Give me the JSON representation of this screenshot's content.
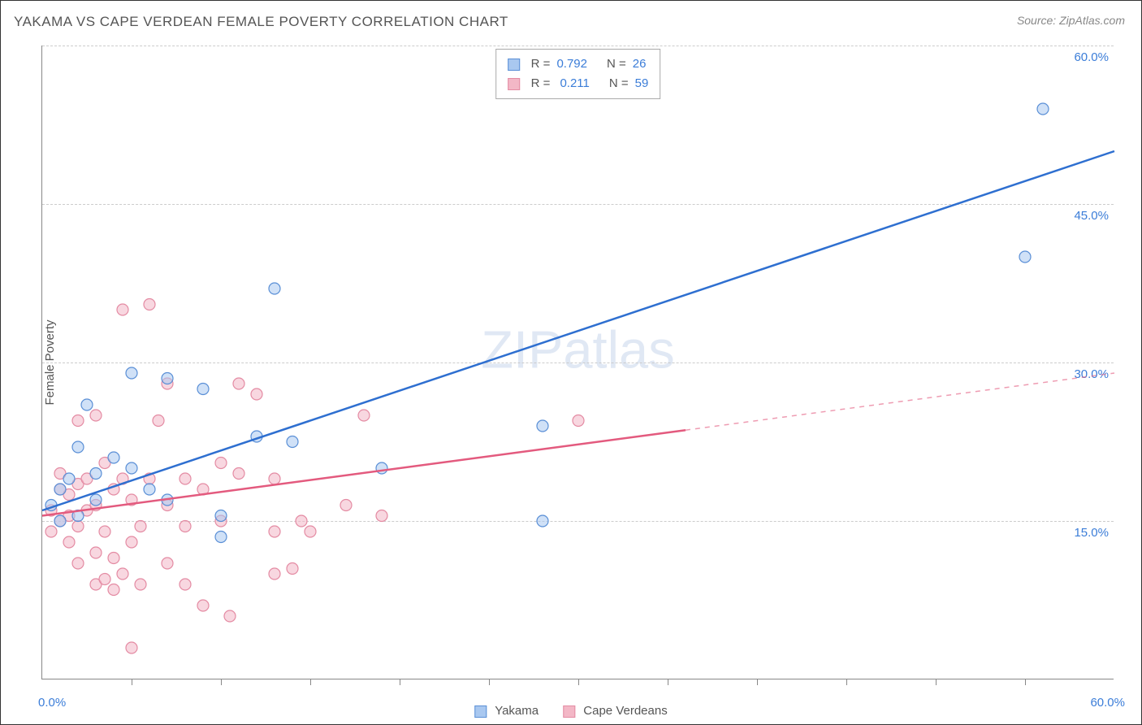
{
  "title": "YAKAMA VS CAPE VERDEAN FEMALE POVERTY CORRELATION CHART",
  "source": "Source: ZipAtlas.com",
  "ylabel": "Female Poverty",
  "watermark": "ZIPatlas",
  "chart": {
    "type": "scatter",
    "xlim": [
      0,
      60
    ],
    "ylim": [
      0,
      60
    ],
    "x_origin_label": "0.0%",
    "x_max_label": "60.0%",
    "y_tick_values": [
      15,
      30,
      45,
      60
    ],
    "y_tick_labels": [
      "15.0%",
      "30.0%",
      "45.0%",
      "60.0%"
    ],
    "x_tick_positions": [
      5,
      10,
      15,
      20,
      25,
      30,
      35,
      40,
      45,
      50,
      55
    ],
    "grid_color": "#cccccc",
    "axis_color": "#888888",
    "background_color": "#ffffff",
    "label_color": "#3b7dd8",
    "marker_radius": 7,
    "marker_opacity": 0.55,
    "line_width": 2.5,
    "series": [
      {
        "name": "Yakama",
        "color_fill": "#a9c8f0",
        "color_stroke": "#5a8fd6",
        "line_color": "#2e6fd0",
        "R": "0.792",
        "N": "26",
        "trend": {
          "x1": 0,
          "y1": 16,
          "x2": 60,
          "y2": 50
        },
        "trend_dash_start": null,
        "points": [
          [
            0.5,
            16.5
          ],
          [
            1,
            18
          ],
          [
            1,
            15
          ],
          [
            1.5,
            19
          ],
          [
            2,
            22
          ],
          [
            2,
            15.5
          ],
          [
            2.5,
            26
          ],
          [
            3,
            19.5
          ],
          [
            3,
            17
          ],
          [
            4,
            21
          ],
          [
            5,
            20
          ],
          [
            5,
            29
          ],
          [
            6,
            18
          ],
          [
            7,
            17
          ],
          [
            7,
            28.5
          ],
          [
            9,
            27.5
          ],
          [
            10,
            13.5
          ],
          [
            10,
            15.5
          ],
          [
            12,
            23
          ],
          [
            13,
            37
          ],
          [
            14,
            22.5
          ],
          [
            19,
            20
          ],
          [
            28,
            24
          ],
          [
            28,
            15
          ],
          [
            55,
            40
          ],
          [
            56,
            54
          ]
        ]
      },
      {
        "name": "Cape Verdeans",
        "color_fill": "#f3b7c6",
        "color_stroke": "#e48ba3",
        "line_color": "#e35a7e",
        "R": "0.211",
        "N": "59",
        "trend": {
          "x1": 0,
          "y1": 15.5,
          "x2": 60,
          "y2": 29
        },
        "trend_dash_start": 36,
        "points": [
          [
            0.5,
            14
          ],
          [
            0.5,
            16
          ],
          [
            1,
            15
          ],
          [
            1,
            18
          ],
          [
            1,
            19.5
          ],
          [
            1.5,
            13
          ],
          [
            1.5,
            15.5
          ],
          [
            1.5,
            17.5
          ],
          [
            2,
            14.5
          ],
          [
            2,
            18.5
          ],
          [
            2,
            24.5
          ],
          [
            2,
            11
          ],
          [
            2.5,
            16
          ],
          [
            2.5,
            19
          ],
          [
            3,
            9
          ],
          [
            3,
            12
          ],
          [
            3,
            16.5
          ],
          [
            3,
            25
          ],
          [
            3.5,
            9.5
          ],
          [
            3.5,
            14
          ],
          [
            3.5,
            20.5
          ],
          [
            4,
            8.5
          ],
          [
            4,
            11.5
          ],
          [
            4,
            18
          ],
          [
            4.5,
            10
          ],
          [
            4.5,
            19
          ],
          [
            4.5,
            35
          ],
          [
            5,
            3
          ],
          [
            5,
            13
          ],
          [
            5,
            17
          ],
          [
            5.5,
            9
          ],
          [
            5.5,
            14.5
          ],
          [
            6,
            35.5
          ],
          [
            6,
            19
          ],
          [
            6.5,
            24.5
          ],
          [
            7,
            11
          ],
          [
            7,
            16.5
          ],
          [
            7,
            28
          ],
          [
            8,
            9
          ],
          [
            8,
            14.5
          ],
          [
            8,
            19
          ],
          [
            9,
            7
          ],
          [
            9,
            18
          ],
          [
            10,
            15
          ],
          [
            10,
            20.5
          ],
          [
            10.5,
            6
          ],
          [
            11,
            28
          ],
          [
            11,
            19.5
          ],
          [
            12,
            27
          ],
          [
            13,
            10
          ],
          [
            13,
            14
          ],
          [
            13,
            19
          ],
          [
            14,
            10.5
          ],
          [
            14.5,
            15
          ],
          [
            15,
            14
          ],
          [
            17,
            16.5
          ],
          [
            18,
            25
          ],
          [
            19,
            15.5
          ],
          [
            30,
            24.5
          ]
        ]
      }
    ],
    "legend_labels": {
      "R_prefix": "R =",
      "N_prefix": "N ="
    }
  }
}
